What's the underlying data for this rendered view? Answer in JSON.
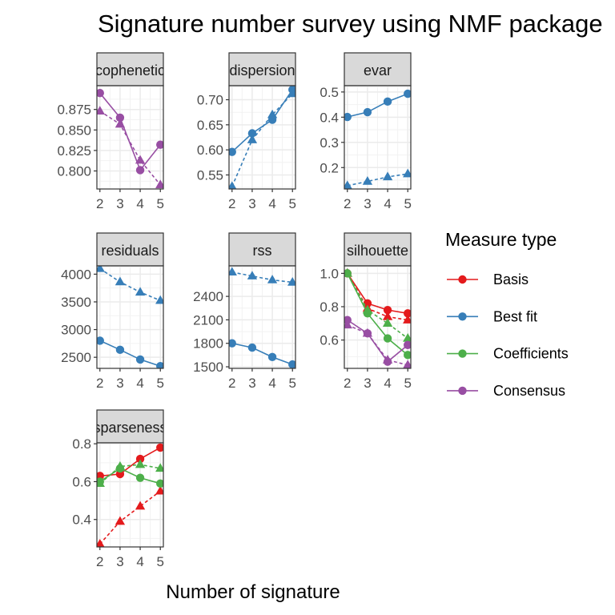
{
  "chart_data": {
    "type": "line",
    "title": "Signature number survey using NMF package",
    "xlabel": "Number of signature",
    "x": [
      2,
      3,
      4,
      5
    ],
    "legend": {
      "title": "Measure type",
      "placement": "right",
      "entries": [
        {
          "name": "Basis",
          "color": "#E41A1C"
        },
        {
          "name": "Best fit",
          "color": "#377EB8"
        },
        {
          "name": "Coefficients",
          "color": "#4DAF4A"
        },
        {
          "name": "Consensus",
          "color": "#984EA3"
        }
      ]
    },
    "grid": true,
    "line_styles": {
      "y": "solid",
      "y.random": "dashed"
    },
    "marker_shapes": {
      "y": "circle",
      "y.random": "triangle"
    },
    "panels": [
      {
        "label": "cophenetic",
        "ylim": [
          0.778,
          0.904
        ],
        "yticks": [
          "0.800",
          "0.825",
          "0.850",
          "0.875"
        ],
        "tickvals": [
          0.8,
          0.825,
          0.85,
          0.875
        ],
        "series": [
          {
            "measure": "Consensus",
            "kind": "y",
            "values": [
              0.895,
              0.865,
              0.801,
              0.832
            ]
          },
          {
            "measure": "Consensus",
            "kind": "y.random",
            "values": [
              0.873,
              0.857,
              0.813,
              0.783
            ]
          }
        ]
      },
      {
        "label": "dispersion",
        "ylim": [
          0.522,
          0.728
        ],
        "yticks": [
          "0.55",
          "0.60",
          "0.65",
          "0.70"
        ],
        "tickvals": [
          0.55,
          0.6,
          0.65,
          0.7
        ],
        "series": [
          {
            "measure": "Best fit",
            "kind": "y",
            "values": [
              0.596,
              0.633,
              0.66,
              0.72
            ]
          },
          {
            "measure": "Best fit",
            "kind": "y.random",
            "values": [
              0.527,
              0.62,
              0.67,
              0.712
            ]
          }
        ]
      },
      {
        "label": "evar",
        "ylim": [
          0.115,
          0.525
        ],
        "yticks": [
          "0.2",
          "0.3",
          "0.4",
          "0.5"
        ],
        "tickvals": [
          0.2,
          0.3,
          0.4,
          0.5
        ],
        "series": [
          {
            "measure": "Best fit",
            "kind": "y",
            "values": [
              0.401,
              0.42,
              0.462,
              0.493
            ]
          },
          {
            "measure": "Best fit",
            "kind": "y.random",
            "values": [
              0.128,
              0.145,
              0.163,
              0.175
            ]
          }
        ]
      },
      {
        "label": "residuals",
        "ylim": [
          2300,
          4150
        ],
        "yticks": [
          "2500",
          "3000",
          "3500",
          "4000"
        ],
        "tickvals": [
          2500,
          3000,
          3500,
          4000
        ],
        "series": [
          {
            "measure": "Best fit",
            "kind": "y",
            "values": [
              2800,
              2635,
              2460,
              2340
            ]
          },
          {
            "measure": "Best fit",
            "kind": "y.random",
            "values": [
              4100,
              3860,
              3675,
              3525
            ]
          }
        ]
      },
      {
        "label": "rss",
        "ylim": [
          1480,
          2790
        ],
        "yticks": [
          "1500",
          "1800",
          "2100",
          "2400"
        ],
        "tickvals": [
          1500,
          1800,
          2100,
          2400
        ],
        "series": [
          {
            "measure": "Best fit",
            "kind": "y",
            "values": [
              1800,
              1745,
              1625,
              1530
            ]
          },
          {
            "measure": "Best fit",
            "kind": "y.random",
            "values": [
              2710,
              2660,
              2610,
              2580
            ]
          }
        ]
      },
      {
        "label": "silhouette",
        "ylim": [
          0.43,
          1.045
        ],
        "yticks": [
          "0.6",
          "0.8",
          "1.0"
        ],
        "tickvals": [
          0.6,
          0.8,
          1.0
        ],
        "series": [
          {
            "measure": "Basis",
            "kind": "y",
            "values": [
              1.0,
              0.82,
              0.78,
              0.76
            ]
          },
          {
            "measure": "Basis",
            "kind": "y.random",
            "values": [
              1.0,
              0.79,
              0.74,
              0.72
            ]
          },
          {
            "measure": "Coefficients",
            "kind": "y",
            "values": [
              1.0,
              0.76,
              0.61,
              0.51
            ]
          },
          {
            "measure": "Coefficients",
            "kind": "y.random",
            "values": [
              1.0,
              0.78,
              0.7,
              0.61
            ]
          },
          {
            "measure": "Consensus",
            "kind": "y",
            "values": [
              0.72,
              0.64,
              0.47,
              0.57
            ]
          },
          {
            "measure": "Consensus",
            "kind": "y.random",
            "values": [
              0.69,
              0.64,
              0.48,
              0.45
            ]
          }
        ]
      },
      {
        "label": "sparseness",
        "ylim": [
          0.255,
          0.805
        ],
        "yticks": [
          "0.4",
          "0.6",
          "0.8"
        ],
        "tickvals": [
          0.4,
          0.6,
          0.8
        ],
        "series": [
          {
            "measure": "Basis",
            "kind": "y",
            "values": [
              0.63,
              0.64,
              0.72,
              0.78
            ]
          },
          {
            "measure": "Basis",
            "kind": "y.random",
            "values": [
              0.27,
              0.39,
              0.47,
              0.55
            ]
          },
          {
            "measure": "Coefficients",
            "kind": "y",
            "values": [
              0.6,
              0.67,
              0.62,
              0.59
            ]
          },
          {
            "measure": "Coefficients",
            "kind": "y.random",
            "values": [
              0.59,
              0.68,
              0.69,
              0.67
            ]
          }
        ]
      }
    ]
  }
}
